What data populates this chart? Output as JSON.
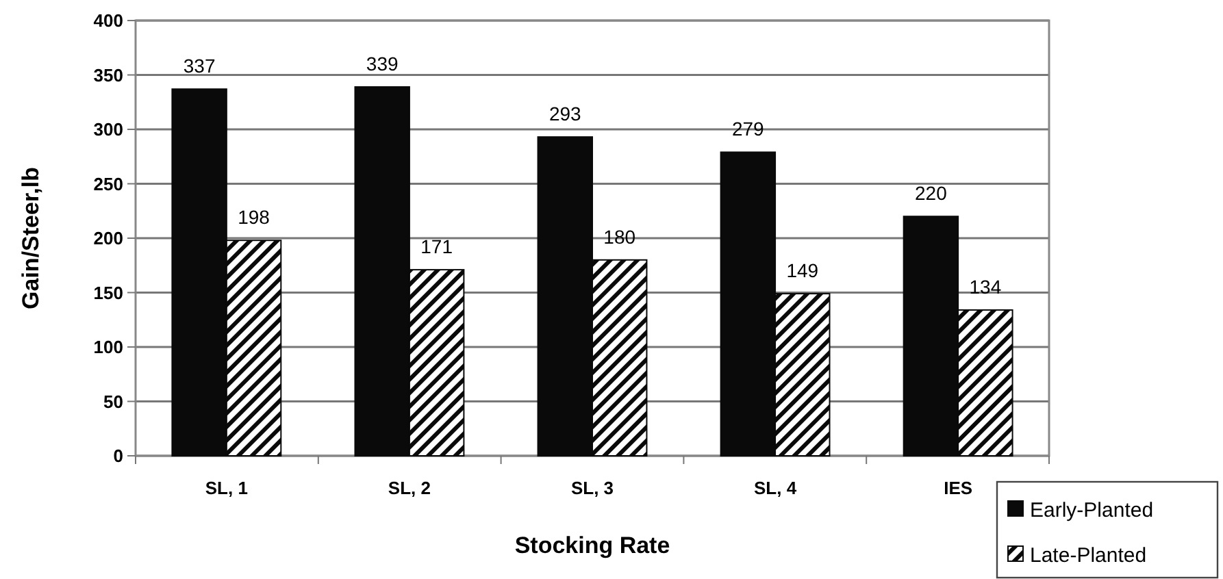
{
  "chart_data": {
    "type": "bar",
    "xlabel": "Stocking Rate",
    "ylabel": "Gain/Steer,lb",
    "categories": [
      "SL, 1",
      "SL, 2",
      "SL, 3",
      "SL, 4",
      "IES"
    ],
    "series": [
      {
        "name": "Early-Planted",
        "color": "#0a0a0a",
        "values": [
          337,
          339,
          293,
          279,
          220
        ]
      },
      {
        "name": "Late-Planted",
        "color": "#0a0a0a",
        "values": [
          198,
          171,
          180,
          149,
          134
        ]
      }
    ],
    "ylim": [
      0,
      400
    ],
    "yticks": [
      0,
      50,
      100,
      150,
      200,
      250,
      300,
      350,
      400
    ],
    "grid": "y",
    "data_labels": true,
    "legend": "bottom right"
  }
}
